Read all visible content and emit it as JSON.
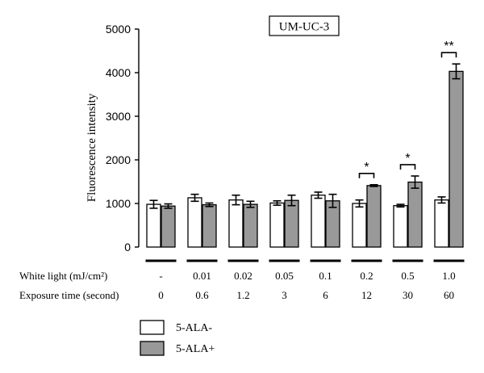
{
  "chart_data": {
    "type": "bar",
    "title": "UM-UC-3",
    "ylabel": "Fluorescence intensity",
    "ylim": [
      0,
      5000
    ],
    "yticks": [
      0,
      1000,
      2000,
      3000,
      4000,
      5000
    ],
    "grid": false,
    "legend_position": "bottom-left",
    "categories": [
      "-",
      "0.01",
      "0.02",
      "0.05",
      "0.1",
      "0.2",
      "0.5",
      "1.0"
    ],
    "row_labels": [
      {
        "label": "White light (mJ/cm²)",
        "values": [
          "-",
          "0.01",
          "0.02",
          "0.05",
          "0.1",
          "0.2",
          "0.5",
          "1.0"
        ]
      },
      {
        "label": "Exposure time (second)",
        "values": [
          "0",
          "0.6",
          "1.2",
          "3",
          "6",
          "12",
          "30",
          "60"
        ]
      }
    ],
    "series": [
      {
        "name": "5-ALA-",
        "color": "#ffffff",
        "values": [
          980,
          1130,
          1080,
          1010,
          1190,
          1000,
          950,
          1080
        ],
        "errors": [
          90,
          80,
          110,
          50,
          70,
          80,
          30,
          70
        ]
      },
      {
        "name": "5-ALA+",
        "color": "#999999",
        "values": [
          940,
          970,
          980,
          1070,
          1060,
          1410,
          1490,
          4030
        ],
        "errors": [
          50,
          40,
          70,
          120,
          150,
          20,
          140,
          170
        ]
      }
    ],
    "annotations": [
      {
        "group": 5,
        "label": "*"
      },
      {
        "group": 6,
        "label": "*"
      },
      {
        "group": 7,
        "label": "**"
      }
    ]
  }
}
